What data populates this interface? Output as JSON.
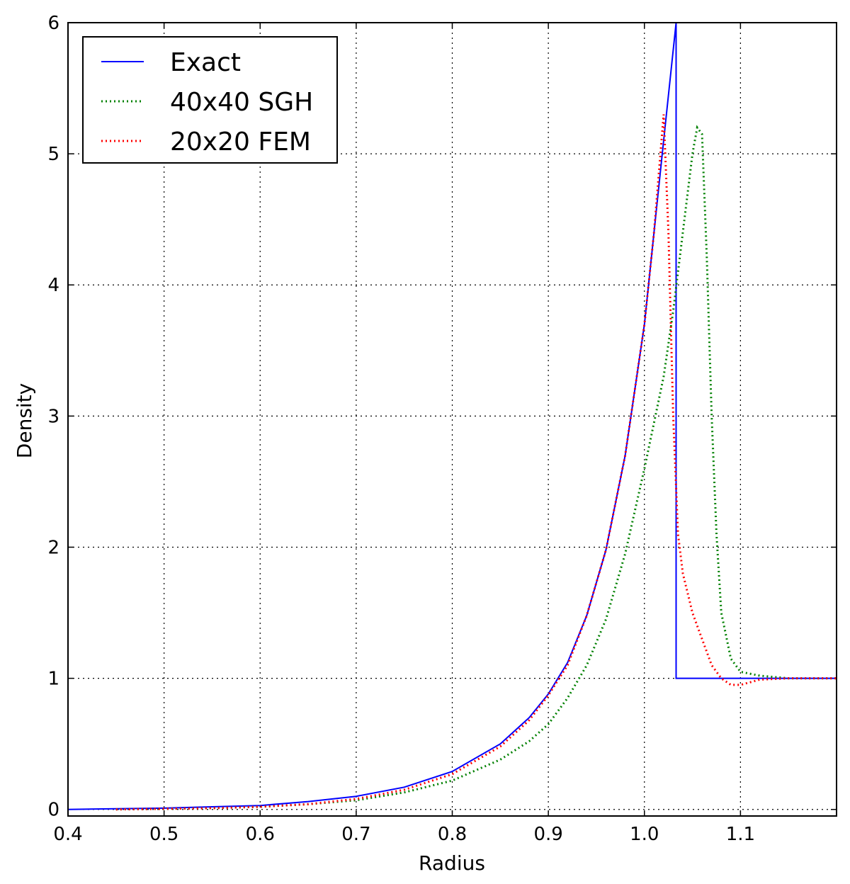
{
  "chart_data": {
    "type": "line",
    "title": "",
    "xlabel": "Radius",
    "ylabel": "Density",
    "xlim": [
      0.4,
      1.2
    ],
    "ylim": [
      -0.05,
      6
    ],
    "xticks": [
      "0.4",
      "0.5",
      "0.6",
      "0.7",
      "0.8",
      "0.9",
      "1.0",
      "1.1"
    ],
    "yticks": [
      "0",
      "1",
      "2",
      "3",
      "4",
      "5",
      "6"
    ],
    "grid": true,
    "legend_position": "top-left",
    "series": [
      {
        "name": "Exact",
        "style": "solid",
        "color": "#0000ff",
        "x": [
          0.4,
          0.45,
          0.5,
          0.55,
          0.6,
          0.65,
          0.7,
          0.75,
          0.8,
          0.85,
          0.88,
          0.9,
          0.92,
          0.94,
          0.96,
          0.98,
          1.0,
          1.01,
          1.02,
          1.033,
          1.033,
          1.2
        ],
        "y": [
          0.0,
          0.005,
          0.01,
          0.02,
          0.03,
          0.06,
          0.1,
          0.17,
          0.29,
          0.5,
          0.7,
          0.88,
          1.12,
          1.48,
          1.98,
          2.7,
          3.7,
          4.4,
          5.1,
          6.0,
          1.0,
          1.0
        ]
      },
      {
        "name": "40x40 SGH",
        "style": "dotted",
        "color": "#008000",
        "x": [
          0.45,
          0.5,
          0.55,
          0.6,
          0.65,
          0.7,
          0.75,
          0.8,
          0.85,
          0.88,
          0.9,
          0.92,
          0.94,
          0.96,
          0.98,
          1.0,
          1.02,
          1.03,
          1.04,
          1.05,
          1.055,
          1.06,
          1.065,
          1.07,
          1.075,
          1.08,
          1.09,
          1.1,
          1.12,
          1.15,
          1.2
        ],
        "y": [
          0.0,
          0.005,
          0.01,
          0.02,
          0.04,
          0.07,
          0.13,
          0.22,
          0.38,
          0.52,
          0.65,
          0.85,
          1.1,
          1.45,
          1.95,
          2.6,
          3.3,
          3.8,
          4.4,
          5.0,
          5.2,
          5.15,
          4.2,
          3.0,
          2.1,
          1.5,
          1.15,
          1.05,
          1.02,
          1.0,
          1.0
        ]
      },
      {
        "name": "20x20 FEM",
        "style": "dotted",
        "color": "#ff0000",
        "x": [
          0.45,
          0.5,
          0.55,
          0.6,
          0.65,
          0.7,
          0.75,
          0.8,
          0.85,
          0.88,
          0.9,
          0.92,
          0.94,
          0.96,
          0.98,
          1.0,
          1.01,
          1.02,
          1.025,
          1.03,
          1.035,
          1.04,
          1.05,
          1.06,
          1.07,
          1.08,
          1.09,
          1.1,
          1.12,
          1.15,
          1.2
        ],
        "y": [
          0.0,
          0.005,
          0.01,
          0.02,
          0.04,
          0.08,
          0.15,
          0.27,
          0.48,
          0.68,
          0.87,
          1.1,
          1.48,
          1.98,
          2.7,
          3.7,
          4.4,
          5.3,
          4.4,
          3.0,
          2.1,
          1.8,
          1.5,
          1.3,
          1.1,
          1.0,
          0.95,
          0.95,
          0.99,
          1.0,
          1.0
        ]
      }
    ]
  }
}
